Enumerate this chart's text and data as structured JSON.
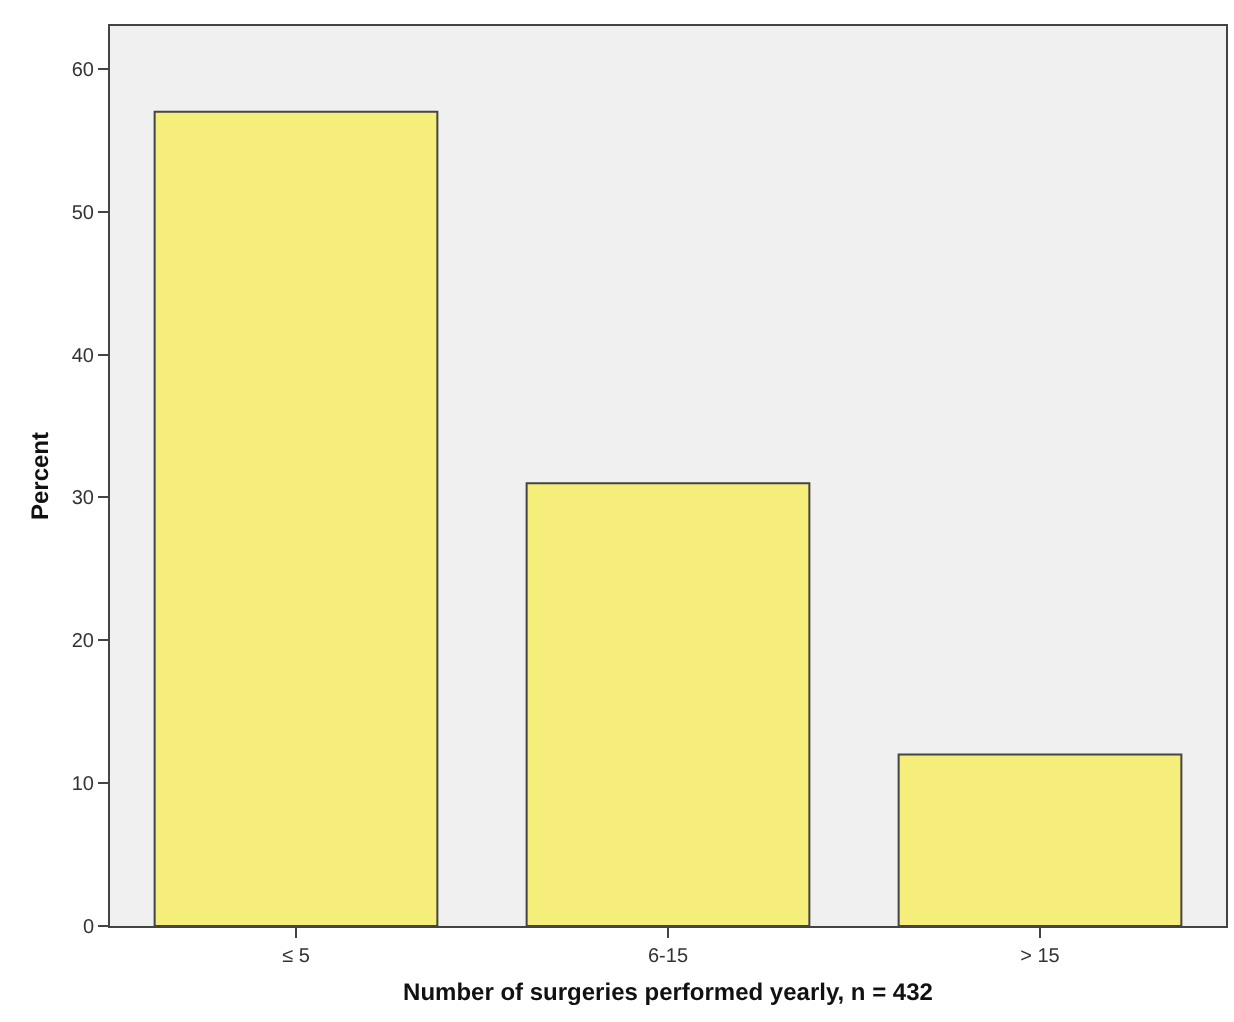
{
  "chart_data": {
    "type": "bar",
    "xlabel": "Number of surgeries performed yearly, n = 432",
    "ylabel": "Percent",
    "categories": [
      "≤ 5",
      "6-15",
      "> 15"
    ],
    "values": [
      57,
      31,
      12
    ],
    "color": "#f5ee7a",
    "ylim": [
      0,
      63
    ],
    "yticks": [
      0,
      10,
      20,
      30,
      40,
      50,
      60
    ],
    "grid": false,
    "legend": false
  }
}
